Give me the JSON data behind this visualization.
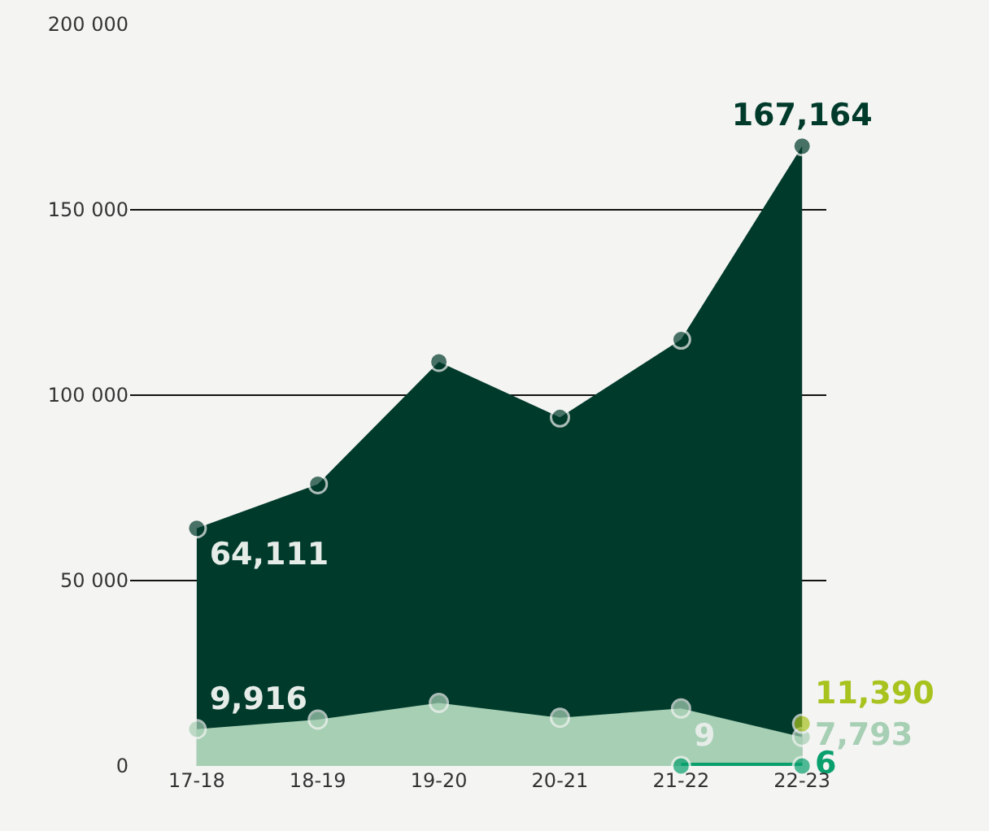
{
  "chart_data": {
    "type": "area",
    "categories": [
      "17-18",
      "18-19",
      "19-20",
      "20-21",
      "21-22",
      "22-23"
    ],
    "series": [
      {
        "name": null,
        "color": "#003a2b",
        "values": [
          64111,
          76000,
          109000,
          94000,
          115000,
          167164
        ],
        "value_labels": [
          "64,111",
          null,
          null,
          null,
          null,
          "167,164"
        ]
      },
      {
        "name": null,
        "color": "#a6cfb4",
        "values": [
          9916,
          12500,
          17000,
          13000,
          15500,
          7793
        ],
        "value_labels": [
          "9,916",
          null,
          null,
          null,
          null,
          "7,793"
        ]
      },
      {
        "name": null,
        "type": "line",
        "color": "#0aa06e",
        "values": [
          null,
          null,
          null,
          null,
          9,
          6
        ],
        "value_labels": [
          null,
          null,
          null,
          null,
          "9",
          "6"
        ]
      },
      {
        "name": null,
        "type": "scatter",
        "color": "#a8c21e",
        "values": [
          null,
          null,
          null,
          null,
          null,
          11390
        ],
        "value_labels": [
          null,
          null,
          null,
          null,
          null,
          "11,390"
        ]
      }
    ],
    "ylim": [
      0,
      200000
    ],
    "yticks": [
      0,
      {
        "value": 50000,
        "label": "50 000"
      },
      {
        "value": 100000,
        "label": "100 000"
      },
      {
        "value": 150000,
        "label": "150 000"
      },
      {
        "value": 200000,
        "label": "200 000"
      }
    ],
    "grid": "y",
    "marker": "circle"
  }
}
